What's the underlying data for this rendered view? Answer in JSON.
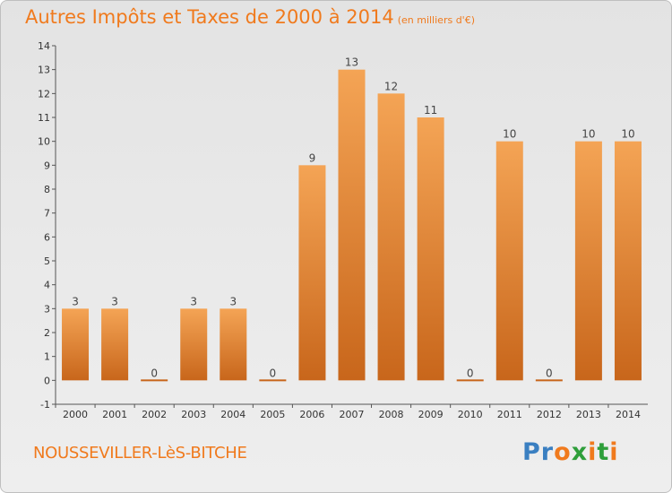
{
  "header": {
    "title": "Autres Impôts et Taxes de 2000 à 2014",
    "unit": "(en milliers d'€)"
  },
  "footer": {
    "commune": "NOUSSEVILLER-LèS-BITCHE"
  },
  "logo": {
    "text": "Proxiti",
    "colors": [
      "#3a7fc1",
      "#3a7fc1",
      "#f07a1d",
      "#2e9e3a",
      "#f07a1d",
      "#2e9e3a",
      "#f07a1d"
    ]
  },
  "colors": {
    "bar_light": "#f4a455",
    "bar_dark": "#c8661b",
    "accent": "#f07a1d"
  },
  "chart_data": {
    "type": "bar",
    "title": "Autres Impôts et Taxes de 2000 à 2014",
    "subtitle": "(en milliers d'€)",
    "categories": [
      "2000",
      "2001",
      "2002",
      "2003",
      "2004",
      "2005",
      "2006",
      "2007",
      "2008",
      "2009",
      "2010",
      "2011",
      "2012",
      "2013",
      "2014"
    ],
    "values": [
      3,
      3,
      0,
      3,
      3,
      0,
      9,
      13,
      12,
      11,
      0,
      10,
      0,
      10,
      10
    ],
    "data_labels": [
      "3",
      "3",
      "0",
      "3",
      "3",
      "0",
      "9",
      "13",
      "12",
      "11",
      "0",
      "10",
      "0",
      "10",
      "10"
    ],
    "ylim": [
      -1,
      14
    ],
    "yticks": [
      "-1",
      "0",
      "1",
      "2",
      "3",
      "4",
      "5",
      "6",
      "7",
      "8",
      "9",
      "10",
      "11",
      "12",
      "13",
      "14"
    ],
    "grid": false,
    "xlabel": "",
    "ylabel": ""
  }
}
